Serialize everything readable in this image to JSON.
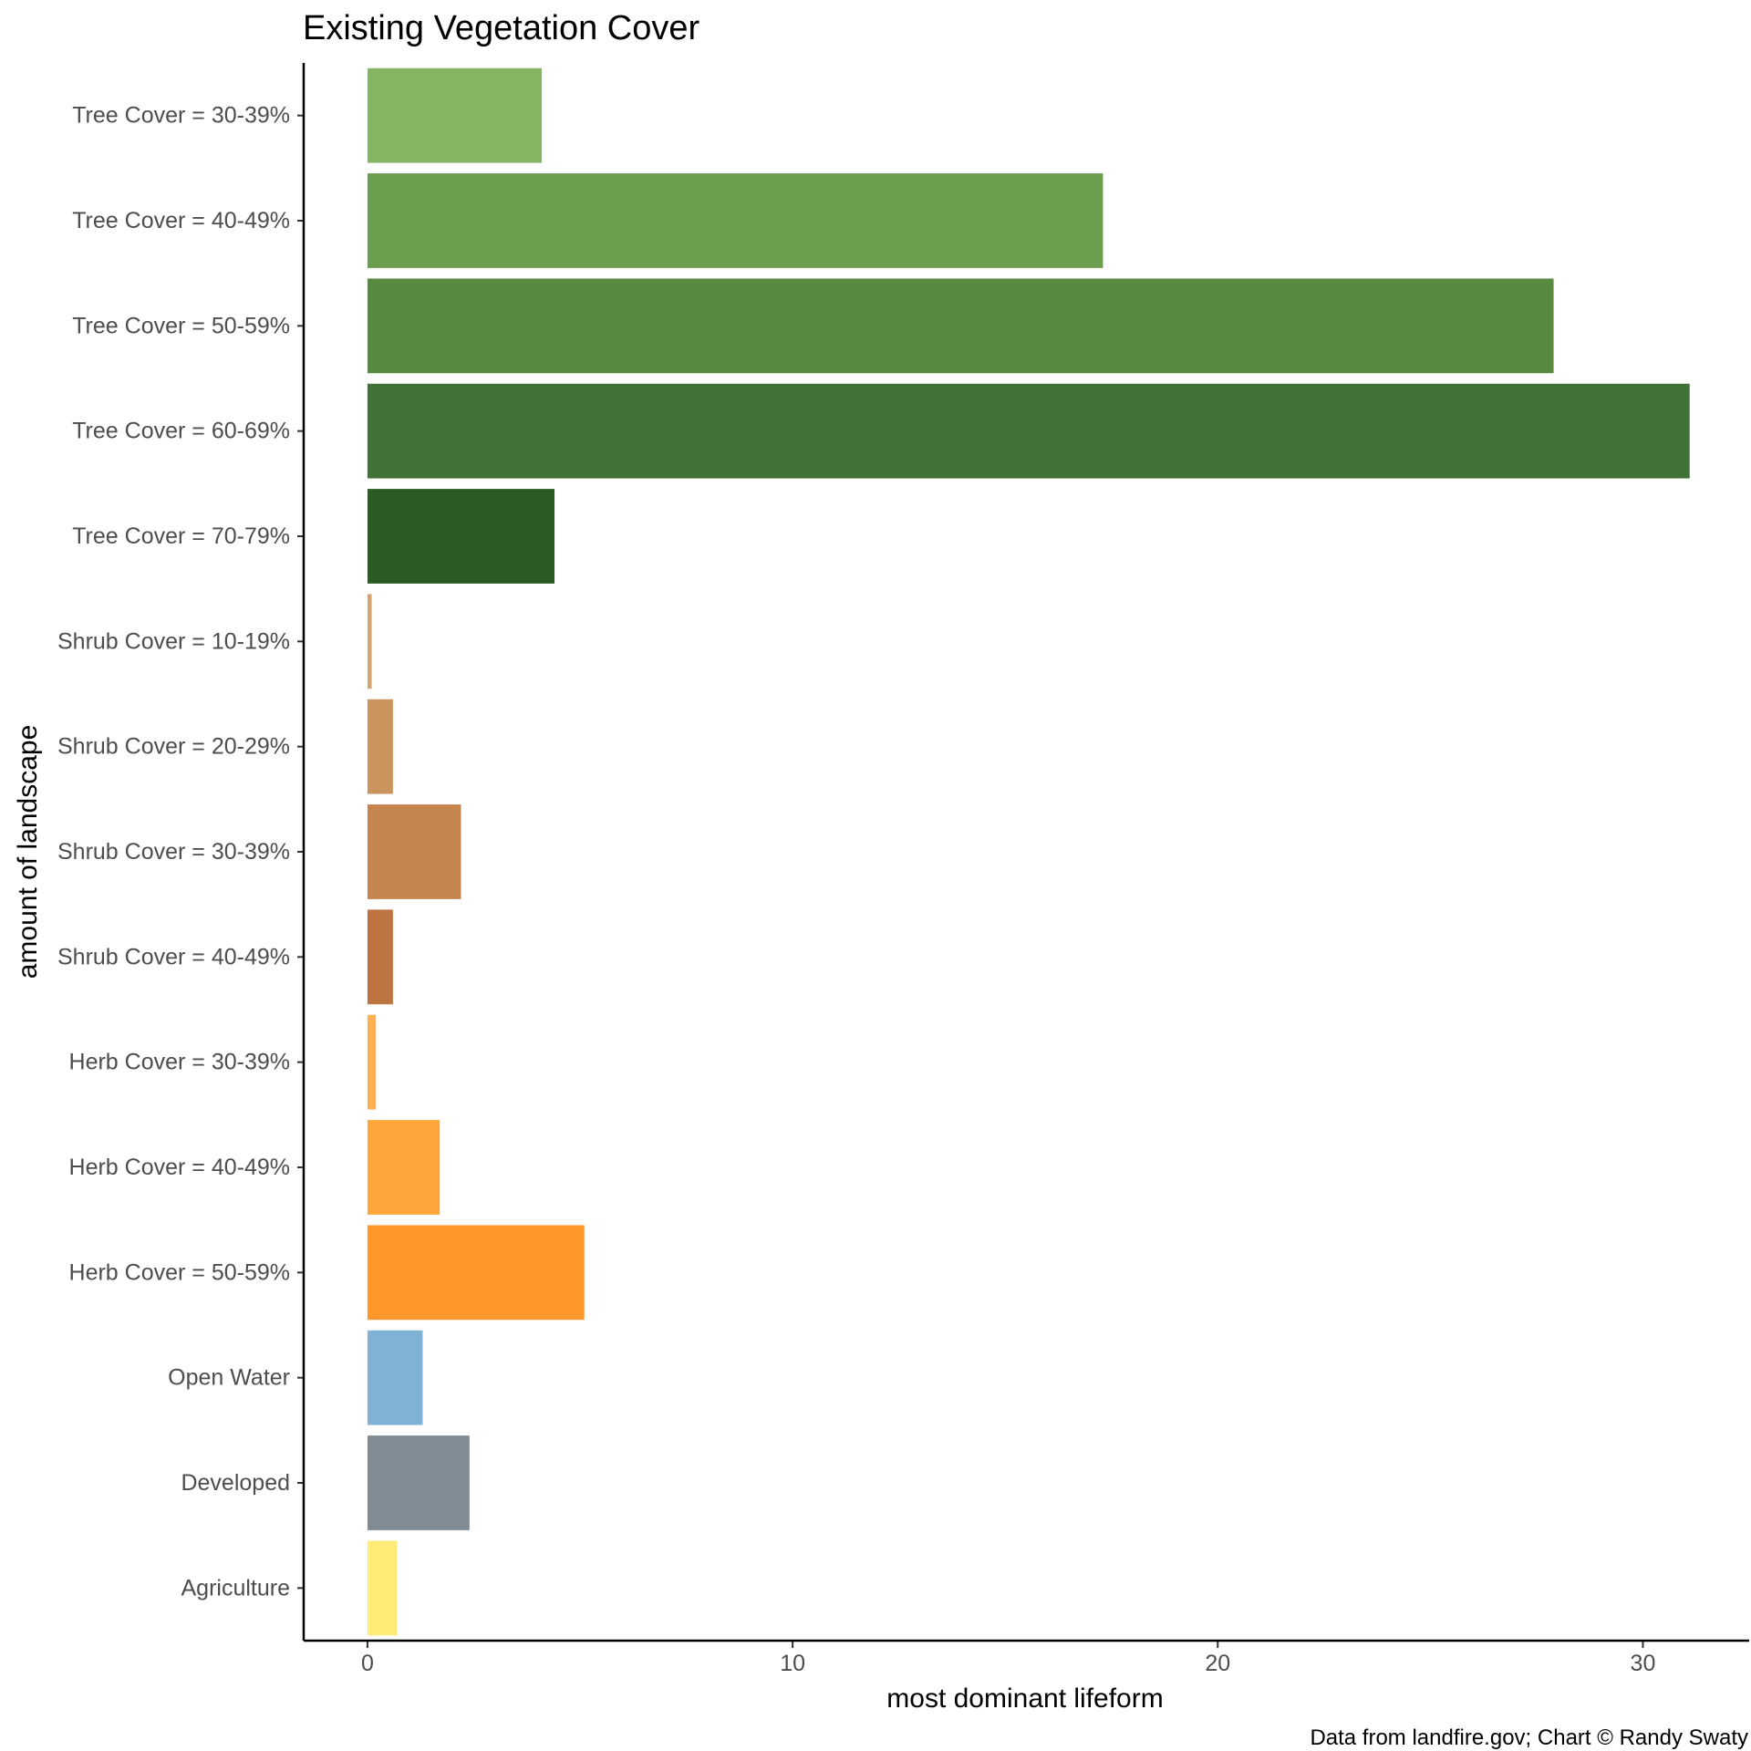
{
  "chart_data": {
    "type": "bar",
    "orientation": "horizontal",
    "title": "Existing Vegetation Cover",
    "xlabel": "most dominant lifeform",
    "ylabel": "amount of landscape",
    "caption": "Data from landfire.gov; Chart © Randy Swaty",
    "xlim": [
      -1.5,
      32.5
    ],
    "xticks": [
      0,
      10,
      20,
      30
    ],
    "xtick_labels": [
      "0",
      "10",
      "20",
      "30"
    ],
    "grid": false,
    "legend": "none",
    "categories": [
      "Tree Cover = 30-39%",
      "Tree Cover = 40-49%",
      "Tree Cover = 50-59%",
      "Tree Cover = 60-69%",
      "Tree Cover = 70-79%",
      "Shrub Cover = 10-19%",
      "Shrub Cover = 20-29%",
      "Shrub Cover = 30-39%",
      "Shrub Cover = 40-49%",
      "Herb Cover = 30-39%",
      "Herb Cover = 40-49%",
      "Herb Cover = 50-59%",
      "Open Water",
      "Developed",
      "Agriculture"
    ],
    "values": [
      4.1,
      17.3,
      27.9,
      31.1,
      4.4,
      0.1,
      0.6,
      2.2,
      0.6,
      0.2,
      1.7,
      5.1,
      1.3,
      2.4,
      0.7
    ],
    "colors": [
      "#85b563",
      "#6c9e50",
      "#578941",
      "#417235",
      "#2b5c23",
      "#d3a572",
      "#cc945d",
      "#c6854f",
      "#bd7441",
      "#ffb152",
      "#ffa63a",
      "#ff972b",
      "#80b2d6",
      "#808b94",
      "#ffeb78"
    ]
  }
}
